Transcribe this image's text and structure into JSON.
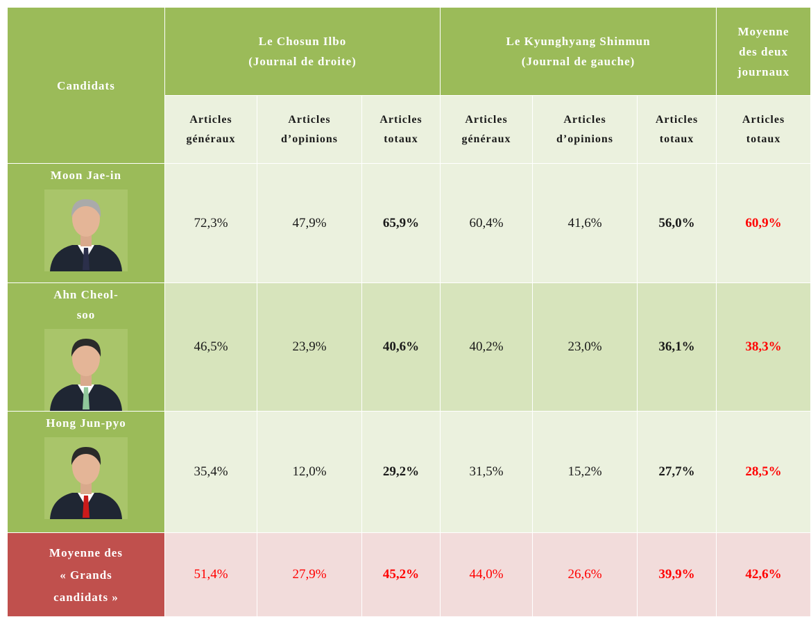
{
  "header": {
    "candidats": "Candidats",
    "groups": [
      {
        "title": "Le Chosun Ilbo",
        "subtitle": "(Journal de droite)"
      },
      {
        "title": "Le Kyunghyang Shinmun",
        "subtitle": "(Journal de gauche)"
      },
      {
        "title": "Moyenne des deux journaux"
      }
    ],
    "subheaders": [
      "Articles généraux",
      "Articles d’opinions",
      "Articles totaux",
      "Articles généraux",
      "Articles d’opinions",
      "Articles totaux",
      "Articles totaux"
    ]
  },
  "table": {
    "rows": [
      {
        "name": "Moon Jae-in",
        "cells": [
          "72,3%",
          "47,9%",
          "65,9%",
          "60,4%",
          "41,6%",
          "56,0%",
          "60,9%"
        ]
      },
      {
        "name": "Ahn Cheol-soo",
        "cells": [
          "46,5%",
          "23,9%",
          "40,6%",
          "40,2%",
          "23,0%",
          "36,1%",
          "38,3%"
        ]
      },
      {
        "name": "Hong Jun-pyo",
        "cells": [
          "35,4%",
          "12,0%",
          "29,2%",
          "31,5%",
          "15,2%",
          "27,7%",
          "28,5%"
        ]
      },
      {
        "name": "Moyenne des « Grands candidats »",
        "cells": [
          "51,4%",
          "27,9%",
          "45,2%",
          "44,0%",
          "26,6%",
          "39,9%",
          "42,6%"
        ]
      }
    ]
  }
}
